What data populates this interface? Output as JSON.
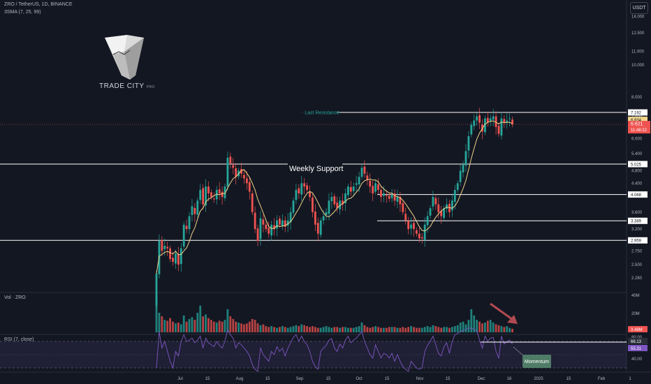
{
  "header": {
    "symbol_line": "ZRO / TetherUS, 1D, BINANCE",
    "indicator_line": "3SMA (7, 25, 99)",
    "currency_button": "USDT"
  },
  "logo": {
    "name": "TRADE CITY",
    "suffix": "PRO"
  },
  "annotations": {
    "last_resistance": "· Last Resistance",
    "weekly_support": "Weekly Support",
    "momentum": "Momentum"
  },
  "colors": {
    "background": "#131722",
    "up": "#26a69a",
    "down": "#ef5350",
    "ma": "#f0d48a",
    "rsi": "#7e57c2",
    "level_line": "#ffffff",
    "resistance_text": "#26a69a",
    "momentum_box": "#4f7c66",
    "arrow": "#b04a52"
  },
  "chart_data": {
    "type": "candlestick",
    "symbol": "ZRO / TetherUS",
    "interval": "1D",
    "exchange": "BINANCE",
    "y_scale": "log",
    "ylim": [
      2.1,
      14.6
    ],
    "price_ticks": [
      "14.000",
      "12.500",
      "11.000",
      "10.000",
      "8.000",
      "7.000",
      "6.000",
      "5.400",
      "4.800",
      "4.400",
      "3.600",
      "3.200",
      "2.750",
      "2.500",
      "2.280"
    ],
    "x_ticks": [
      "Jul",
      "15",
      "Aug",
      "15",
      "Sep",
      "15",
      "Oct",
      "15",
      "Nov",
      "15",
      "Dec",
      "16",
      "2025",
      "15",
      "Feb",
      "1"
    ],
    "levels": [
      {
        "value": 7.192,
        "label": "7.192",
        "note": "Last Resistance"
      },
      {
        "value": 5.025,
        "label": "5.025",
        "note": "Weekly Support"
      },
      {
        "value": 4.068,
        "label": "4.068"
      },
      {
        "value": 3.389,
        "label": "3.389"
      },
      {
        "value": 2.959,
        "label": "2.959"
      }
    ],
    "price_labels": [
      {
        "value": 6.834,
        "label": "6.834"
      },
      {
        "value": 6.621,
        "label": "6.621"
      }
    ],
    "last_price": 6.621,
    "countdown": "11:48:22",
    "ma_length": 7,
    "closes": [
      2.35,
      2.95,
      2.75,
      2.85,
      2.8,
      2.6,
      2.55,
      2.7,
      2.5,
      2.8,
      3.3,
      3.2,
      3.5,
      3.75,
      3.55,
      3.9,
      4.2,
      3.8,
      4.3,
      4.1,
      4.0,
      3.95,
      4.2,
      4.1,
      4.0,
      4.3,
      5.25,
      5.05,
      4.9,
      4.6,
      4.8,
      4.7,
      4.55,
      4.4,
      4.15,
      3.6,
      3.2,
      2.95,
      3.45,
      3.3,
      3.2,
      3.1,
      3.3,
      3.2,
      3.4,
      3.3,
      3.4,
      3.25,
      3.4,
      3.6,
      3.9,
      4.2,
      4.1,
      4.4,
      4.3,
      4.2,
      4.0,
      3.6,
      3.3,
      3.1,
      3.4,
      3.5,
      3.6,
      3.9,
      4.0,
      3.8,
      3.7,
      3.9,
      3.8,
      4.1,
      4.3,
      4.15,
      4.3,
      4.4,
      4.6,
      4.9,
      4.7,
      4.5,
      4.3,
      4.1,
      4.4,
      4.2,
      4.0,
      4.1,
      4.05,
      3.95,
      4.05,
      3.9,
      4.0,
      3.8,
      3.6,
      3.4,
      3.2,
      3.3,
      3.2,
      3.1,
      3.0,
      3.0,
      3.3,
      3.5,
      3.7,
      4.0,
      3.8,
      3.6,
      3.5,
      3.7,
      3.8,
      3.6,
      3.9,
      4.2,
      4.4,
      4.8,
      5.0,
      5.5,
      6.1,
      6.6,
      6.8,
      7.0,
      6.7,
      6.3,
      6.9,
      6.7,
      6.9,
      7.0,
      6.5,
      6.2,
      6.9,
      6.7,
      6.8,
      6.9,
      6.621
    ],
    "volume": {
      "label": "Vol · ZRO",
      "ticks": [
        "40M",
        "20M"
      ],
      "last": "3.48M",
      "values": [
        40,
        22,
        18,
        14,
        13,
        16,
        12,
        10,
        11,
        9,
        19,
        12,
        15,
        17,
        14,
        22,
        30,
        18,
        20,
        16,
        14,
        12,
        11,
        13,
        12,
        14,
        26,
        18,
        15,
        12,
        11,
        10,
        9,
        10,
        12,
        15,
        14,
        10,
        8,
        9,
        7,
        6,
        7,
        6,
        5,
        6,
        7,
        6,
        5,
        6,
        7,
        8,
        7,
        9,
        8,
        7,
        6,
        7,
        6,
        5,
        5,
        6,
        7,
        6,
        5,
        6,
        6,
        5,
        6,
        6,
        5,
        5,
        5,
        6,
        7,
        11,
        8,
        6,
        5,
        6,
        7,
        6,
        5,
        5,
        5,
        6,
        6,
        6,
        5,
        5,
        6,
        5,
        6,
        7,
        6,
        5,
        5,
        5,
        6,
        7,
        6,
        8,
        7,
        6,
        5,
        6,
        6,
        5,
        6,
        7,
        8,
        11,
        12,
        9,
        14,
        26,
        19,
        14,
        12,
        10,
        11,
        13,
        14,
        11,
        9,
        8,
        7,
        6,
        7,
        5,
        4
      ]
    },
    "rsi": {
      "label": "RSI (7, close)",
      "ticks": [
        "80.00",
        "40.00"
      ],
      "upper": 70,
      "lower": 30,
      "label_1": "66.13",
      "label_2": "55.31",
      "values": [
        30,
        85,
        60,
        70,
        55,
        40,
        30,
        55,
        48,
        70,
        80,
        70,
        72,
        75,
        68,
        72,
        78,
        60,
        75,
        68,
        65,
        62,
        70,
        64,
        60,
        70,
        88,
        80,
        75,
        60,
        68,
        65,
        60,
        55,
        48,
        35,
        28,
        25,
        60,
        50,
        45,
        40,
        55,
        50,
        62,
        55,
        60,
        48,
        60,
        68,
        76,
        80,
        70,
        78,
        70,
        65,
        55,
        40,
        32,
        28,
        55,
        60,
        64,
        72,
        74,
        60,
        55,
        66,
        60,
        72,
        78,
        68,
        72,
        75,
        80,
        85,
        70,
        60,
        50,
        45,
        65,
        55,
        45,
        52,
        50,
        45,
        52,
        40,
        50,
        40,
        32,
        28,
        25,
        40,
        35,
        30,
        28,
        30,
        55,
        64,
        70,
        78,
        65,
        52,
        48,
        62,
        68,
        52,
        70,
        80,
        82,
        85,
        86,
        88,
        90,
        90,
        88,
        86,
        72,
        60,
        78,
        70,
        75,
        76,
        55,
        45,
        78,
        66,
        70,
        72,
        66
      ]
    }
  }
}
